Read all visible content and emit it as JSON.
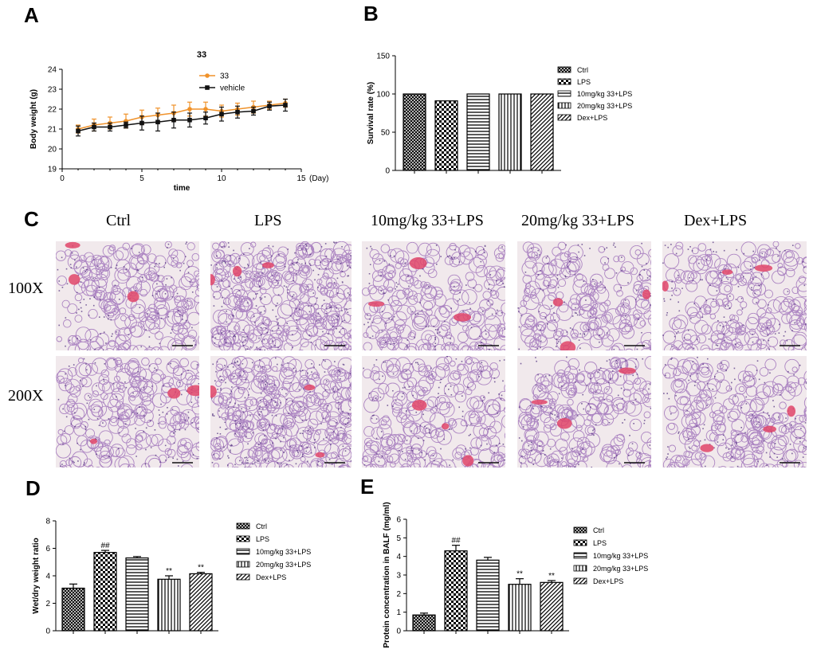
{
  "panels": {
    "a": "A",
    "b": "B",
    "c": "C",
    "d": "D",
    "e": "E"
  },
  "colors": {
    "series_33": "#f0922a",
    "series_vehicle": "#111111",
    "tissue_bg": "#f1e9ec",
    "tissue_purple": "#9b6bb8",
    "tissue_red": "#e0456a"
  },
  "histology": {
    "columns": [
      "Ctrl",
      "LPS",
      "10mg/kg 33+LPS",
      "20mg/kg 33+LPS",
      "Dex+LPS"
    ],
    "rows": [
      "100X",
      "200X"
    ]
  },
  "chart_data": [
    {
      "id": "A",
      "type": "line",
      "title": "33",
      "xlabel": "time",
      "ylabel": "Body weight (g)",
      "x_unit": "(Day)",
      "xlim": [
        0,
        15
      ],
      "ylim": [
        19,
        24
      ],
      "xticks": [
        0,
        5,
        10,
        15
      ],
      "yticks": [
        19,
        20,
        21,
        22,
        23,
        24
      ],
      "x": [
        1,
        2,
        3,
        4,
        5,
        6,
        7,
        8,
        9,
        10,
        11,
        12,
        13,
        14
      ],
      "series": [
        {
          "name": "33",
          "color": "#f0922a",
          "marker": "circle",
          "values": [
            21.0,
            21.2,
            21.3,
            21.4,
            21.6,
            21.7,
            21.8,
            22.0,
            22.0,
            21.9,
            22.0,
            22.1,
            22.2,
            22.3
          ],
          "errors": [
            0.2,
            0.3,
            0.3,
            0.35,
            0.35,
            0.35,
            0.4,
            0.35,
            0.35,
            0.3,
            0.3,
            0.3,
            0.2,
            0.2
          ]
        },
        {
          "name": "vehicle",
          "color": "#111111",
          "marker": "square",
          "values": [
            20.9,
            21.1,
            21.1,
            21.2,
            21.3,
            21.35,
            21.45,
            21.45,
            21.55,
            21.75,
            21.85,
            21.9,
            22.15,
            22.2
          ],
          "errors": [
            0.25,
            0.2,
            0.2,
            0.15,
            0.35,
            0.45,
            0.4,
            0.35,
            0.3,
            0.35,
            0.3,
            0.2,
            0.2,
            0.3
          ]
        }
      ],
      "legend": "top-right"
    },
    {
      "id": "B",
      "type": "bar",
      "ylabel": "Survival rate (%)",
      "ylim": [
        0,
        150
      ],
      "yticks": [
        0,
        50,
        100,
        150
      ],
      "categories": [
        "Ctrl",
        "LPS",
        "10mg/kg 33+LPS",
        "20mg/kg 33+LPS",
        "Dex+LPS"
      ],
      "values": [
        100,
        91,
        100,
        100,
        100
      ],
      "patterns": [
        "crosshatch",
        "checker",
        "hlines",
        "vlines",
        "diag"
      ],
      "legend": "top-right"
    },
    {
      "id": "D",
      "type": "bar",
      "ylabel": "Wet/dry weight ratio",
      "ylim": [
        0,
        8
      ],
      "yticks": [
        0,
        2,
        4,
        6,
        8
      ],
      "categories": [
        "Ctrl",
        "LPS",
        "10mg/kg 33+LPS",
        "20mg/kg 33+LPS",
        "Dex+LPS"
      ],
      "values": [
        3.1,
        5.7,
        5.3,
        3.75,
        4.15
      ],
      "errors": [
        0.3,
        0.15,
        0.1,
        0.25,
        0.1
      ],
      "annotations": [
        "",
        "##",
        "",
        "**",
        "**"
      ],
      "patterns": [
        "crosshatch",
        "checker",
        "hlines",
        "vlines",
        "diag"
      ],
      "legend": "top-right"
    },
    {
      "id": "E",
      "type": "bar",
      "ylabel": "Protein concentration in BALF (mg/ml)",
      "ylim": [
        0,
        6
      ],
      "yticks": [
        0,
        1,
        2,
        3,
        4,
        5,
        6
      ],
      "categories": [
        "Ctrl",
        "LPS",
        "10mg/kg 33+LPS",
        "20mg/kg 33+LPS",
        "Dex+LPS"
      ],
      "values": [
        0.85,
        4.3,
        3.8,
        2.5,
        2.6
      ],
      "errors": [
        0.1,
        0.3,
        0.15,
        0.3,
        0.1
      ],
      "annotations": [
        "",
        "##",
        "",
        "**",
        "**"
      ],
      "patterns": [
        "crosshatch",
        "checker",
        "hlines",
        "vlines",
        "diag"
      ],
      "legend": "top-right"
    }
  ]
}
